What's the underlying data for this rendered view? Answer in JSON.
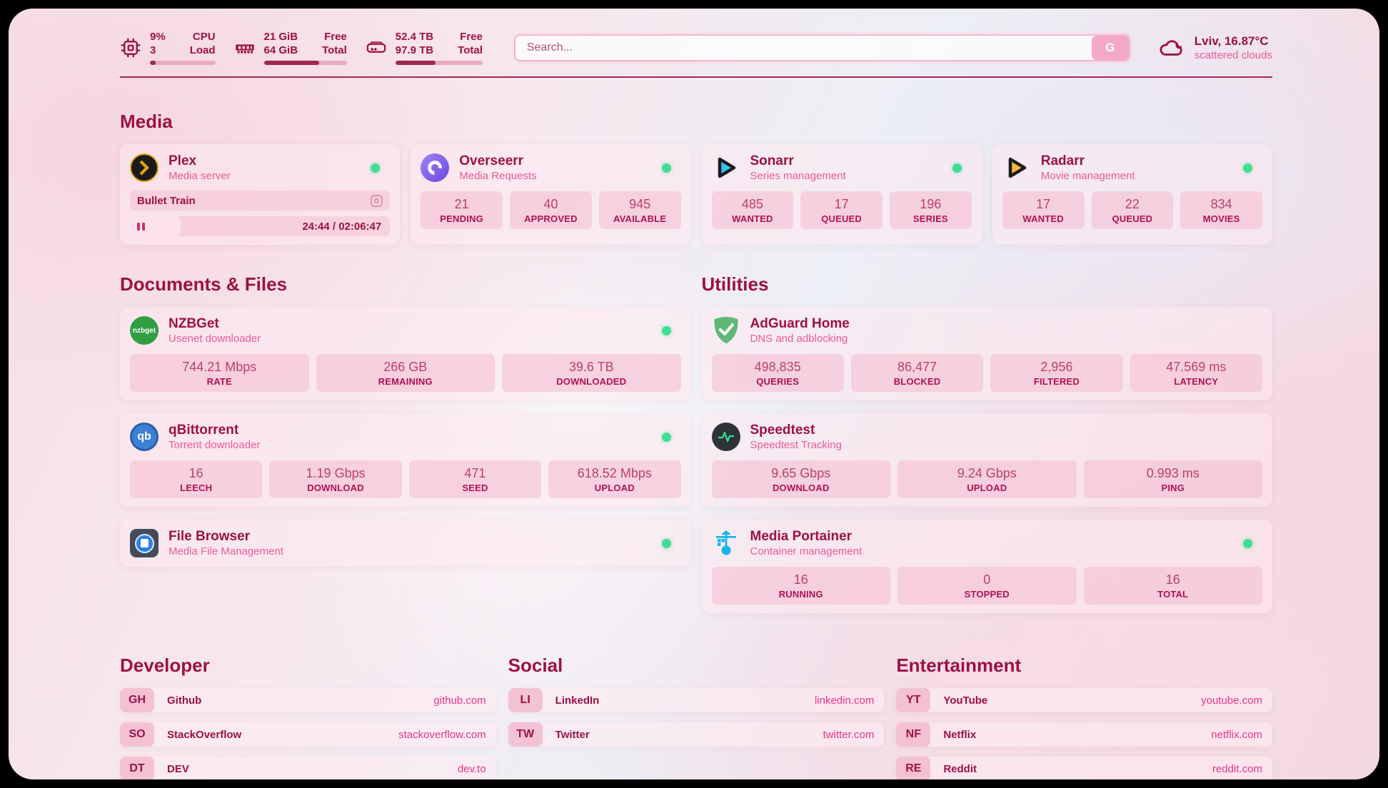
{
  "colors": {
    "accent_dark": "#9c1144",
    "accent_pink": "#ee5a9b",
    "link_pink": "#e9358d",
    "status_green": "#41dd95",
    "bar_fill": "#a22552",
    "plex_gold": "#e5a00d",
    "sonarr_blue": "#38c1f1",
    "radarr_amber": "#f4b63f",
    "adguard_green": "#5fb878",
    "portainer_blue": "#13b5ea"
  },
  "header": {
    "cpu": {
      "value1": "9%",
      "label1": "CPU",
      "value2": "3",
      "label2": "Load",
      "percent": 9
    },
    "ram": {
      "value1": "21 GiB",
      "label1": "Free",
      "value2": "64 GiB",
      "label2": "Total",
      "percent": 67
    },
    "disk": {
      "value1": "52.4 TB",
      "label1": "Free",
      "value2": "97.9 TB",
      "label2": "Total",
      "percent": 46
    },
    "search": {
      "placeholder": "Search...",
      "button_label": "G"
    },
    "weather": {
      "location": "Lviv, 16.87°C",
      "condition": "scattered clouds"
    }
  },
  "sections": {
    "media": "Media",
    "documents": "Documents & Files",
    "utilities": "Utilities",
    "developer": "Developer",
    "social": "Social",
    "entertainment": "Entertainment"
  },
  "apps": {
    "plex": {
      "name": "Plex",
      "desc": "Media server",
      "now_playing": "Bullet Train",
      "time": "24:44 / 02:06:47",
      "progress_percent": 19.5
    },
    "overseerr": {
      "name": "Overseerr",
      "desc": "Media Requests",
      "stats": [
        {
          "value": "21",
          "label": "PENDING"
        },
        {
          "value": "40",
          "label": "APPROVED"
        },
        {
          "value": "945",
          "label": "AVAILABLE"
        }
      ]
    },
    "sonarr": {
      "name": "Sonarr",
      "desc": "Series management",
      "stats": [
        {
          "value": "485",
          "label": "WANTED"
        },
        {
          "value": "17",
          "label": "QUEUED"
        },
        {
          "value": "196",
          "label": "SERIES"
        }
      ]
    },
    "radarr": {
      "name": "Radarr",
      "desc": "Movie management",
      "stats": [
        {
          "value": "17",
          "label": "WANTED"
        },
        {
          "value": "22",
          "label": "QUEUED"
        },
        {
          "value": "834",
          "label": "MOVIES"
        }
      ]
    },
    "nzbget": {
      "name": "NZBGet",
      "desc": "Usenet downloader",
      "icon_text": "nzbget",
      "stats": [
        {
          "value": "744.21 Mbps",
          "label": "RATE"
        },
        {
          "value": "266 GB",
          "label": "REMAINING"
        },
        {
          "value": "39.6 TB",
          "label": "DOWNLOADED"
        }
      ]
    },
    "qbittorrent": {
      "name": "qBittorrent",
      "desc": "Torrent downloader",
      "icon_text": "qb",
      "stats": [
        {
          "value": "16",
          "label": "LEECH"
        },
        {
          "value": "1.19 Gbps",
          "label": "DOWNLOAD"
        },
        {
          "value": "471",
          "label": "SEED"
        },
        {
          "value": "618.52 Mbps",
          "label": "UPLOAD"
        }
      ]
    },
    "filebrowser": {
      "name": "File Browser",
      "desc": "Media File Management"
    },
    "adguard": {
      "name": "AdGuard Home",
      "desc": "DNS and adblocking",
      "stats": [
        {
          "value": "498,835",
          "label": "QUERIES"
        },
        {
          "value": "86,477",
          "label": "BLOCKED"
        },
        {
          "value": "2,956",
          "label": "FILTERED"
        },
        {
          "value": "47.569 ms",
          "label": "LATENCY"
        }
      ]
    },
    "speedtest": {
      "name": "Speedtest",
      "desc": "Speedtest Tracking",
      "stats": [
        {
          "value": "9.65 Gbps",
          "label": "DOWNLOAD"
        },
        {
          "value": "9.24 Gbps",
          "label": "UPLOAD"
        },
        {
          "value": "0.993 ms",
          "label": "PING"
        }
      ]
    },
    "portainer": {
      "name": "Media Portainer",
      "desc": "Container management",
      "stats": [
        {
          "value": "16",
          "label": "RUNNING"
        },
        {
          "value": "0",
          "label": "STOPPED"
        },
        {
          "value": "16",
          "label": "TOTAL"
        }
      ]
    }
  },
  "links": {
    "developer": [
      {
        "badge": "GH",
        "name": "Github",
        "url": "github.com"
      },
      {
        "badge": "SO",
        "name": "StackOverflow",
        "url": "stackoverflow.com"
      },
      {
        "badge": "DT",
        "name": "DEV",
        "url": "dev.to"
      }
    ],
    "social": [
      {
        "badge": "LI",
        "name": "LinkedIn",
        "url": "linkedin.com"
      },
      {
        "badge": "TW",
        "name": "Twitter",
        "url": "twitter.com"
      }
    ],
    "entertainment": [
      {
        "badge": "YT",
        "name": "YouTube",
        "url": "youtube.com"
      },
      {
        "badge": "NF",
        "name": "Netflix",
        "url": "netflix.com"
      },
      {
        "badge": "RE",
        "name": "Reddit",
        "url": "reddit.com"
      }
    ]
  }
}
